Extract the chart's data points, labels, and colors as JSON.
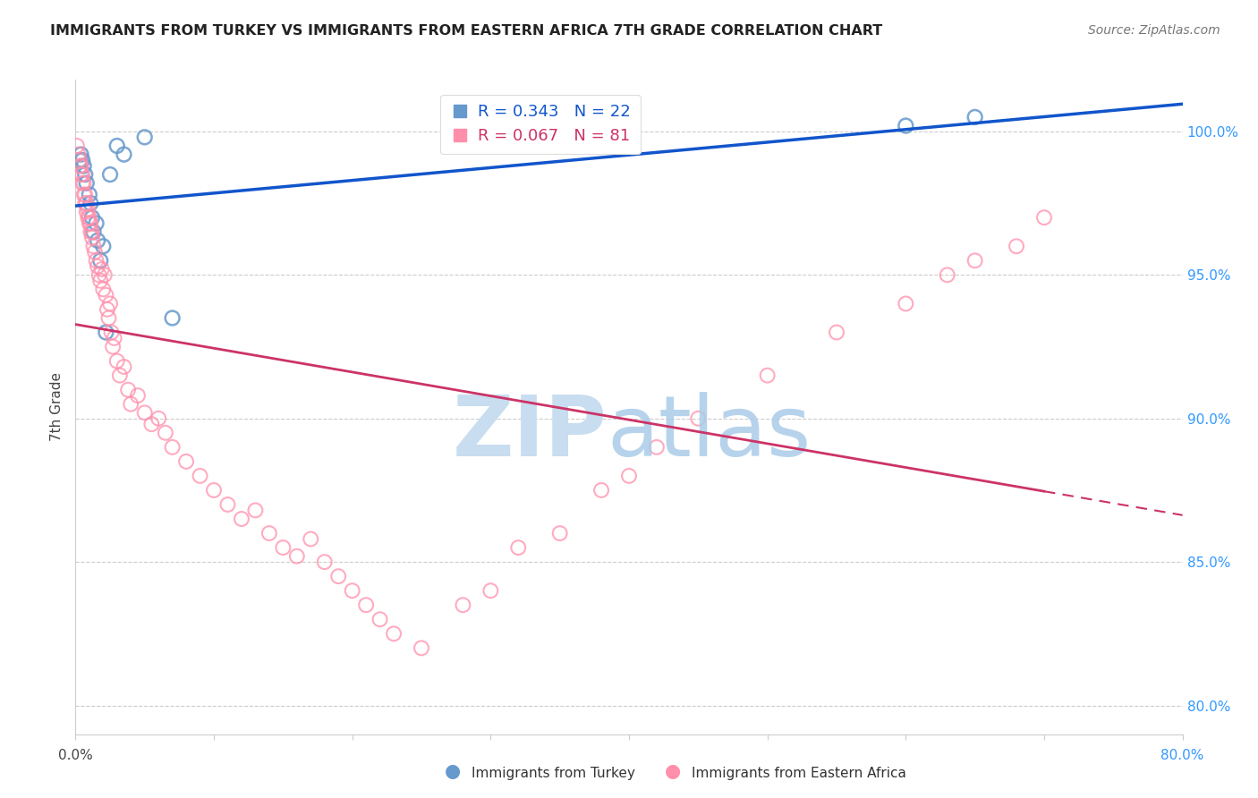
{
  "title": "IMMIGRANTS FROM TURKEY VS IMMIGRANTS FROM EASTERN AFRICA 7TH GRADE CORRELATION CHART",
  "source": "Source: ZipAtlas.com",
  "ylabel": "7th Grade",
  "yticks": [
    80.0,
    85.0,
    90.0,
    95.0,
    100.0
  ],
  "ytick_labels": [
    "80.0%",
    "85.0%",
    "90.0%",
    "95.0%",
    "100.0%"
  ],
  "xmin": 0.0,
  "xmax": 80.0,
  "ymin": 79.0,
  "ymax": 101.8,
  "legend_turkey": "Immigrants from Turkey",
  "legend_africa": "Immigrants from Eastern Africa",
  "r_turkey": 0.343,
  "n_turkey": 22,
  "r_africa": 0.067,
  "n_africa": 81,
  "color_turkey": "#6699CC",
  "color_africa": "#FF8FAB",
  "color_trend_turkey": "#1155CC",
  "color_trend_africa": "#CC3366",
  "watermark_color": "#D0E4F7",
  "turkey_x": [
    0.3,
    0.4,
    0.5,
    0.6,
    0.7,
    0.8,
    1.0,
    1.1,
    1.2,
    1.3,
    1.5,
    1.6,
    1.8,
    2.0,
    2.2,
    2.5,
    3.0,
    3.5,
    5.0,
    7.0,
    60.0,
    65.0
  ],
  "turkey_y": [
    99.0,
    99.2,
    99.0,
    98.8,
    98.5,
    98.2,
    97.8,
    97.5,
    97.0,
    96.5,
    96.8,
    96.2,
    95.5,
    96.0,
    93.0,
    98.5,
    99.5,
    99.2,
    99.8,
    93.5,
    100.2,
    100.5
  ],
  "africa_x": [
    0.1,
    0.2,
    0.3,
    0.3,
    0.4,
    0.4,
    0.5,
    0.5,
    0.6,
    0.6,
    0.7,
    0.7,
    0.8,
    0.8,
    0.9,
    0.9,
    1.0,
    1.0,
    1.1,
    1.1,
    1.2,
    1.2,
    1.3,
    1.4,
    1.5,
    1.6,
    1.7,
    1.8,
    1.9,
    2.0,
    2.1,
    2.2,
    2.3,
    2.4,
    2.5,
    2.6,
    2.7,
    2.8,
    3.0,
    3.2,
    3.5,
    3.8,
    4.0,
    4.5,
    5.0,
    5.5,
    6.0,
    6.5,
    7.0,
    8.0,
    9.0,
    10.0,
    11.0,
    12.0,
    13.0,
    14.0,
    15.0,
    16.0,
    17.0,
    18.0,
    19.0,
    20.0,
    21.0,
    22.0,
    23.0,
    25.0,
    28.0,
    30.0,
    32.0,
    35.0,
    38.0,
    40.0,
    42.0,
    45.0,
    50.0,
    55.0,
    60.0,
    63.0,
    65.0,
    68.0,
    70.0
  ],
  "africa_y": [
    99.5,
    99.2,
    98.8,
    99.0,
    98.5,
    98.8,
    98.2,
    98.5,
    97.8,
    98.2,
    97.5,
    97.8,
    97.2,
    97.5,
    97.0,
    97.3,
    96.8,
    97.0,
    96.5,
    96.8,
    96.3,
    96.5,
    96.0,
    95.8,
    95.5,
    95.3,
    95.0,
    94.8,
    95.2,
    94.5,
    95.0,
    94.3,
    93.8,
    93.5,
    94.0,
    93.0,
    92.5,
    92.8,
    92.0,
    91.5,
    91.8,
    91.0,
    90.5,
    90.8,
    90.2,
    89.8,
    90.0,
    89.5,
    89.0,
    88.5,
    88.0,
    87.5,
    87.0,
    86.5,
    86.8,
    86.0,
    85.5,
    85.2,
    85.8,
    85.0,
    84.5,
    84.0,
    83.5,
    83.0,
    82.5,
    82.0,
    83.5,
    84.0,
    85.5,
    86.0,
    87.5,
    88.0,
    89.0,
    90.0,
    91.5,
    93.0,
    94.0,
    95.0,
    95.5,
    96.0,
    97.0
  ]
}
